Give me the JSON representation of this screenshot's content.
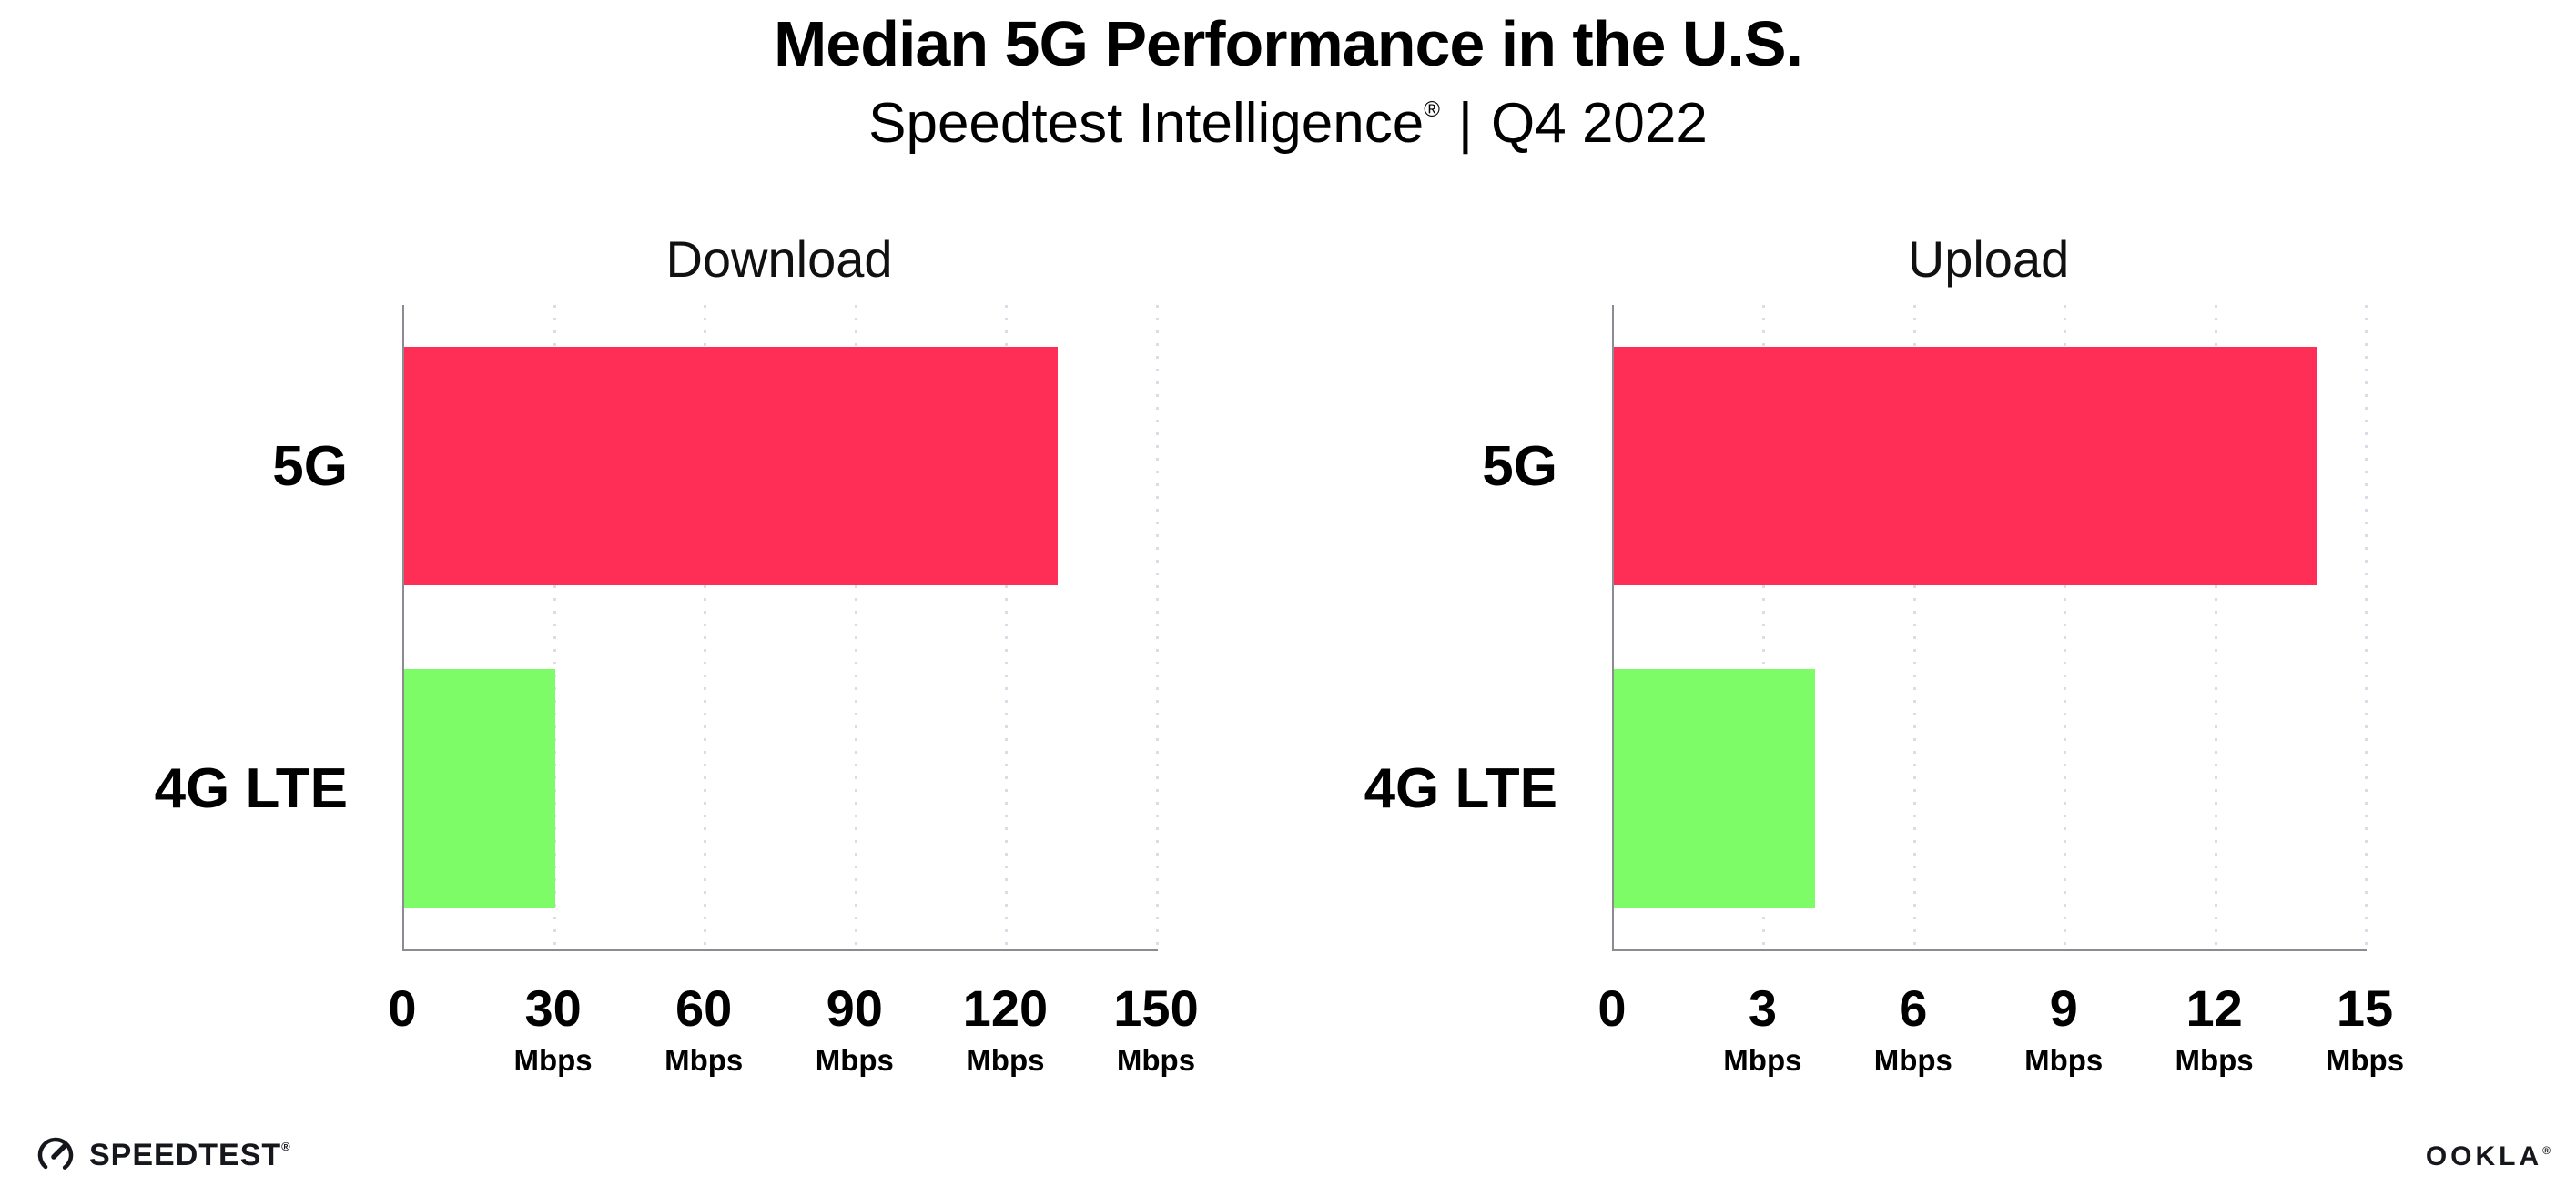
{
  "header": {
    "title": "Median 5G Performance in the U.S.",
    "subtitle_brand": "Speedtest Intelligence",
    "subtitle_reg": "®",
    "subtitle_divider": "|",
    "subtitle_period": "Q4 2022"
  },
  "chart_data": [
    {
      "type": "bar",
      "orientation": "horizontal",
      "title": "Download",
      "categories": [
        "5G",
        "4G LTE"
      ],
      "values": [
        130,
        30
      ],
      "unit": "Mbps",
      "xlim": [
        0,
        150
      ],
      "xticks": [
        0,
        30,
        60,
        90,
        120,
        150
      ],
      "tick_unit_label": "Mbps",
      "bar_colors": [
        "#FF2E57",
        "#7EFC68"
      ],
      "grid": "vertical-dotted",
      "legend": "none"
    },
    {
      "type": "bar",
      "orientation": "horizontal",
      "title": "Upload",
      "categories": [
        "5G",
        "4G LTE"
      ],
      "values": [
        14,
        4
      ],
      "unit": "Mbps",
      "xlim": [
        0,
        15
      ],
      "xticks": [
        0,
        3,
        6,
        9,
        12,
        15
      ],
      "tick_unit_label": "Mbps",
      "bar_colors": [
        "#FF2E57",
        "#7EFC68"
      ],
      "grid": "vertical-dotted",
      "legend": "none"
    }
  ],
  "footer": {
    "speedtest_label": "SPEEDTEST",
    "speedtest_reg": "®",
    "ookla_label": "OOKLA",
    "ookla_reg": "®"
  },
  "colors": {
    "bar_5g": "#FF2E57",
    "bar_4g_lte": "#7EFC68",
    "gridline": "#DCDCE8",
    "axis": "#8B8B91",
    "text": "#000000",
    "background": "#FFFFFF"
  }
}
